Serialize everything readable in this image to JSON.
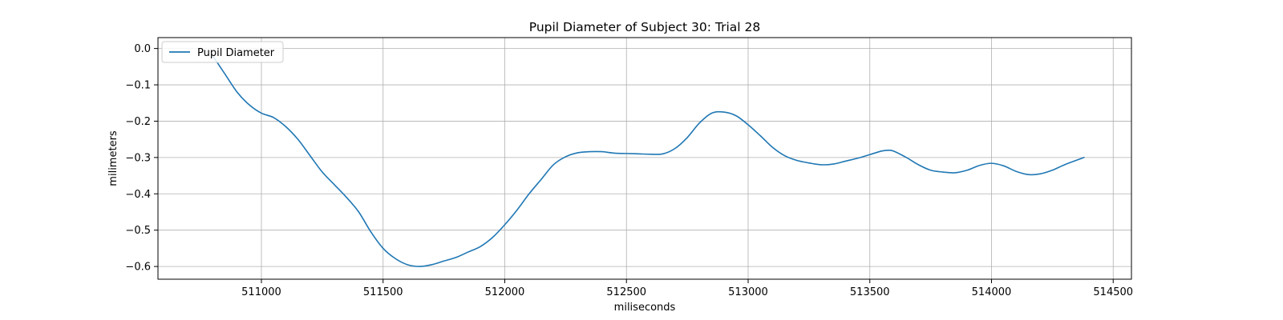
{
  "chart_data": {
    "type": "line",
    "title": "Pupil Diameter of Subject 30: Trial 28",
    "xlabel": "miliseconds",
    "ylabel": "milimeters",
    "xlim": [
      510575,
      514575
    ],
    "ylim": [
      -0.635,
      0.03
    ],
    "xticks": [
      511000,
      511500,
      512000,
      512500,
      513000,
      513500,
      514000,
      514500
    ],
    "yticks": [
      0.0,
      -0.1,
      -0.2,
      -0.3,
      -0.4,
      -0.5,
      -0.6
    ],
    "grid": true,
    "legend": {
      "position": "upper-left"
    },
    "series": [
      {
        "name": "Pupil Diameter",
        "color": "#1f77b4",
        "x": [
          510800,
          510850,
          510900,
          510950,
          511000,
          511050,
          511100,
          511150,
          511200,
          511250,
          511300,
          511350,
          511400,
          511450,
          511500,
          511550,
          511600,
          511650,
          511700,
          511750,
          511800,
          511850,
          511900,
          511950,
          512000,
          512050,
          512100,
          512150,
          512200,
          512250,
          512300,
          512350,
          512400,
          512450,
          512500,
          512550,
          512600,
          512650,
          512700,
          512750,
          512800,
          512850,
          512900,
          512950,
          513000,
          513050,
          513100,
          513150,
          513200,
          513250,
          513300,
          513350,
          513400,
          513450,
          513500,
          513550,
          513580,
          513600,
          513650,
          513700,
          513750,
          513800,
          513850,
          513900,
          513950,
          514000,
          514050,
          514100,
          514150,
          514200,
          514250,
          514300,
          514380
        ],
        "y": [
          -0.02,
          -0.07,
          -0.12,
          -0.155,
          -0.178,
          -0.19,
          -0.215,
          -0.25,
          -0.295,
          -0.34,
          -0.375,
          -0.41,
          -0.45,
          -0.505,
          -0.55,
          -0.578,
          -0.595,
          -0.6,
          -0.595,
          -0.585,
          -0.575,
          -0.56,
          -0.545,
          -0.52,
          -0.485,
          -0.445,
          -0.4,
          -0.36,
          -0.32,
          -0.298,
          -0.287,
          -0.284,
          -0.284,
          -0.288,
          -0.289,
          -0.29,
          -0.291,
          -0.29,
          -0.275,
          -0.245,
          -0.205,
          -0.178,
          -0.175,
          -0.185,
          -0.21,
          -0.24,
          -0.272,
          -0.295,
          -0.308,
          -0.315,
          -0.32,
          -0.318,
          -0.31,
          -0.302,
          -0.292,
          -0.282,
          -0.28,
          -0.283,
          -0.3,
          -0.32,
          -0.335,
          -0.34,
          -0.342,
          -0.335,
          -0.322,
          -0.316,
          -0.323,
          -0.338,
          -0.347,
          -0.345,
          -0.335,
          -0.32,
          -0.3
        ]
      }
    ]
  }
}
